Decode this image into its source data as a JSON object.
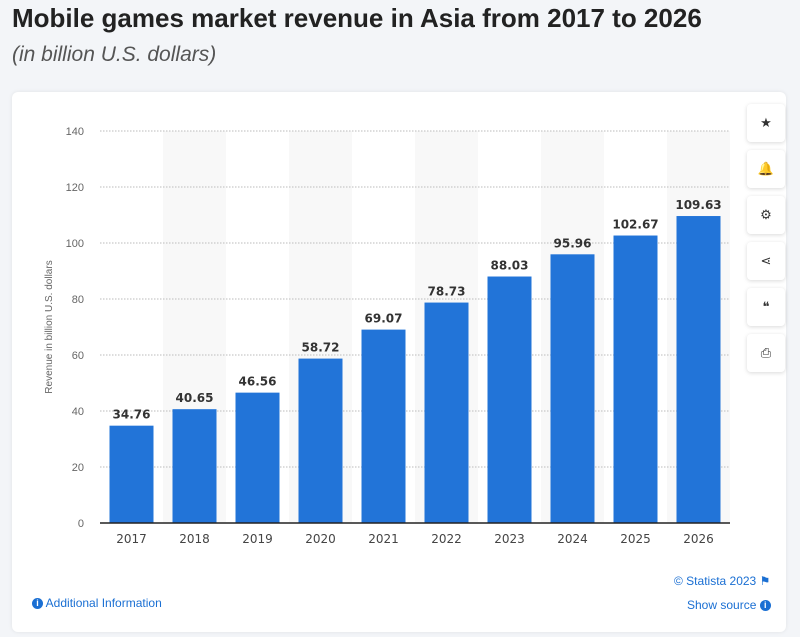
{
  "title": "Mobile games market revenue in Asia from 2017 to 2026",
  "subtitle": "(in billion U.S. dollars)",
  "toolbar": [
    {
      "icon": "star-icon",
      "glyph": "★"
    },
    {
      "icon": "bell-icon",
      "glyph": "🔔"
    },
    {
      "icon": "gear-icon",
      "glyph": "⚙"
    },
    {
      "icon": "share-icon",
      "glyph": "⋖"
    },
    {
      "icon": "quote-icon",
      "glyph": "❝"
    },
    {
      "icon": "print-icon",
      "glyph": "⎙"
    }
  ],
  "footer": {
    "additional_info": "Additional Information",
    "copyright": "© Statista 2023",
    "show_source": "Show source"
  },
  "chart_data": {
    "type": "bar",
    "title": "",
    "xlabel": "",
    "ylabel": "Revenue in billion U.S. dollars",
    "ylim": [
      0,
      140
    ],
    "yticks": [
      0,
      20,
      40,
      60,
      80,
      100,
      120,
      140
    ],
    "grid": true,
    "categories": [
      "2017",
      "2018",
      "2019",
      "2020",
      "2021",
      "2022",
      "2023",
      "2024",
      "2025",
      "2026"
    ],
    "values": [
      34.76,
      40.65,
      46.56,
      58.72,
      69.07,
      78.73,
      88.03,
      95.96,
      102.67,
      109.63
    ],
    "bar_color": "#2274d8"
  }
}
